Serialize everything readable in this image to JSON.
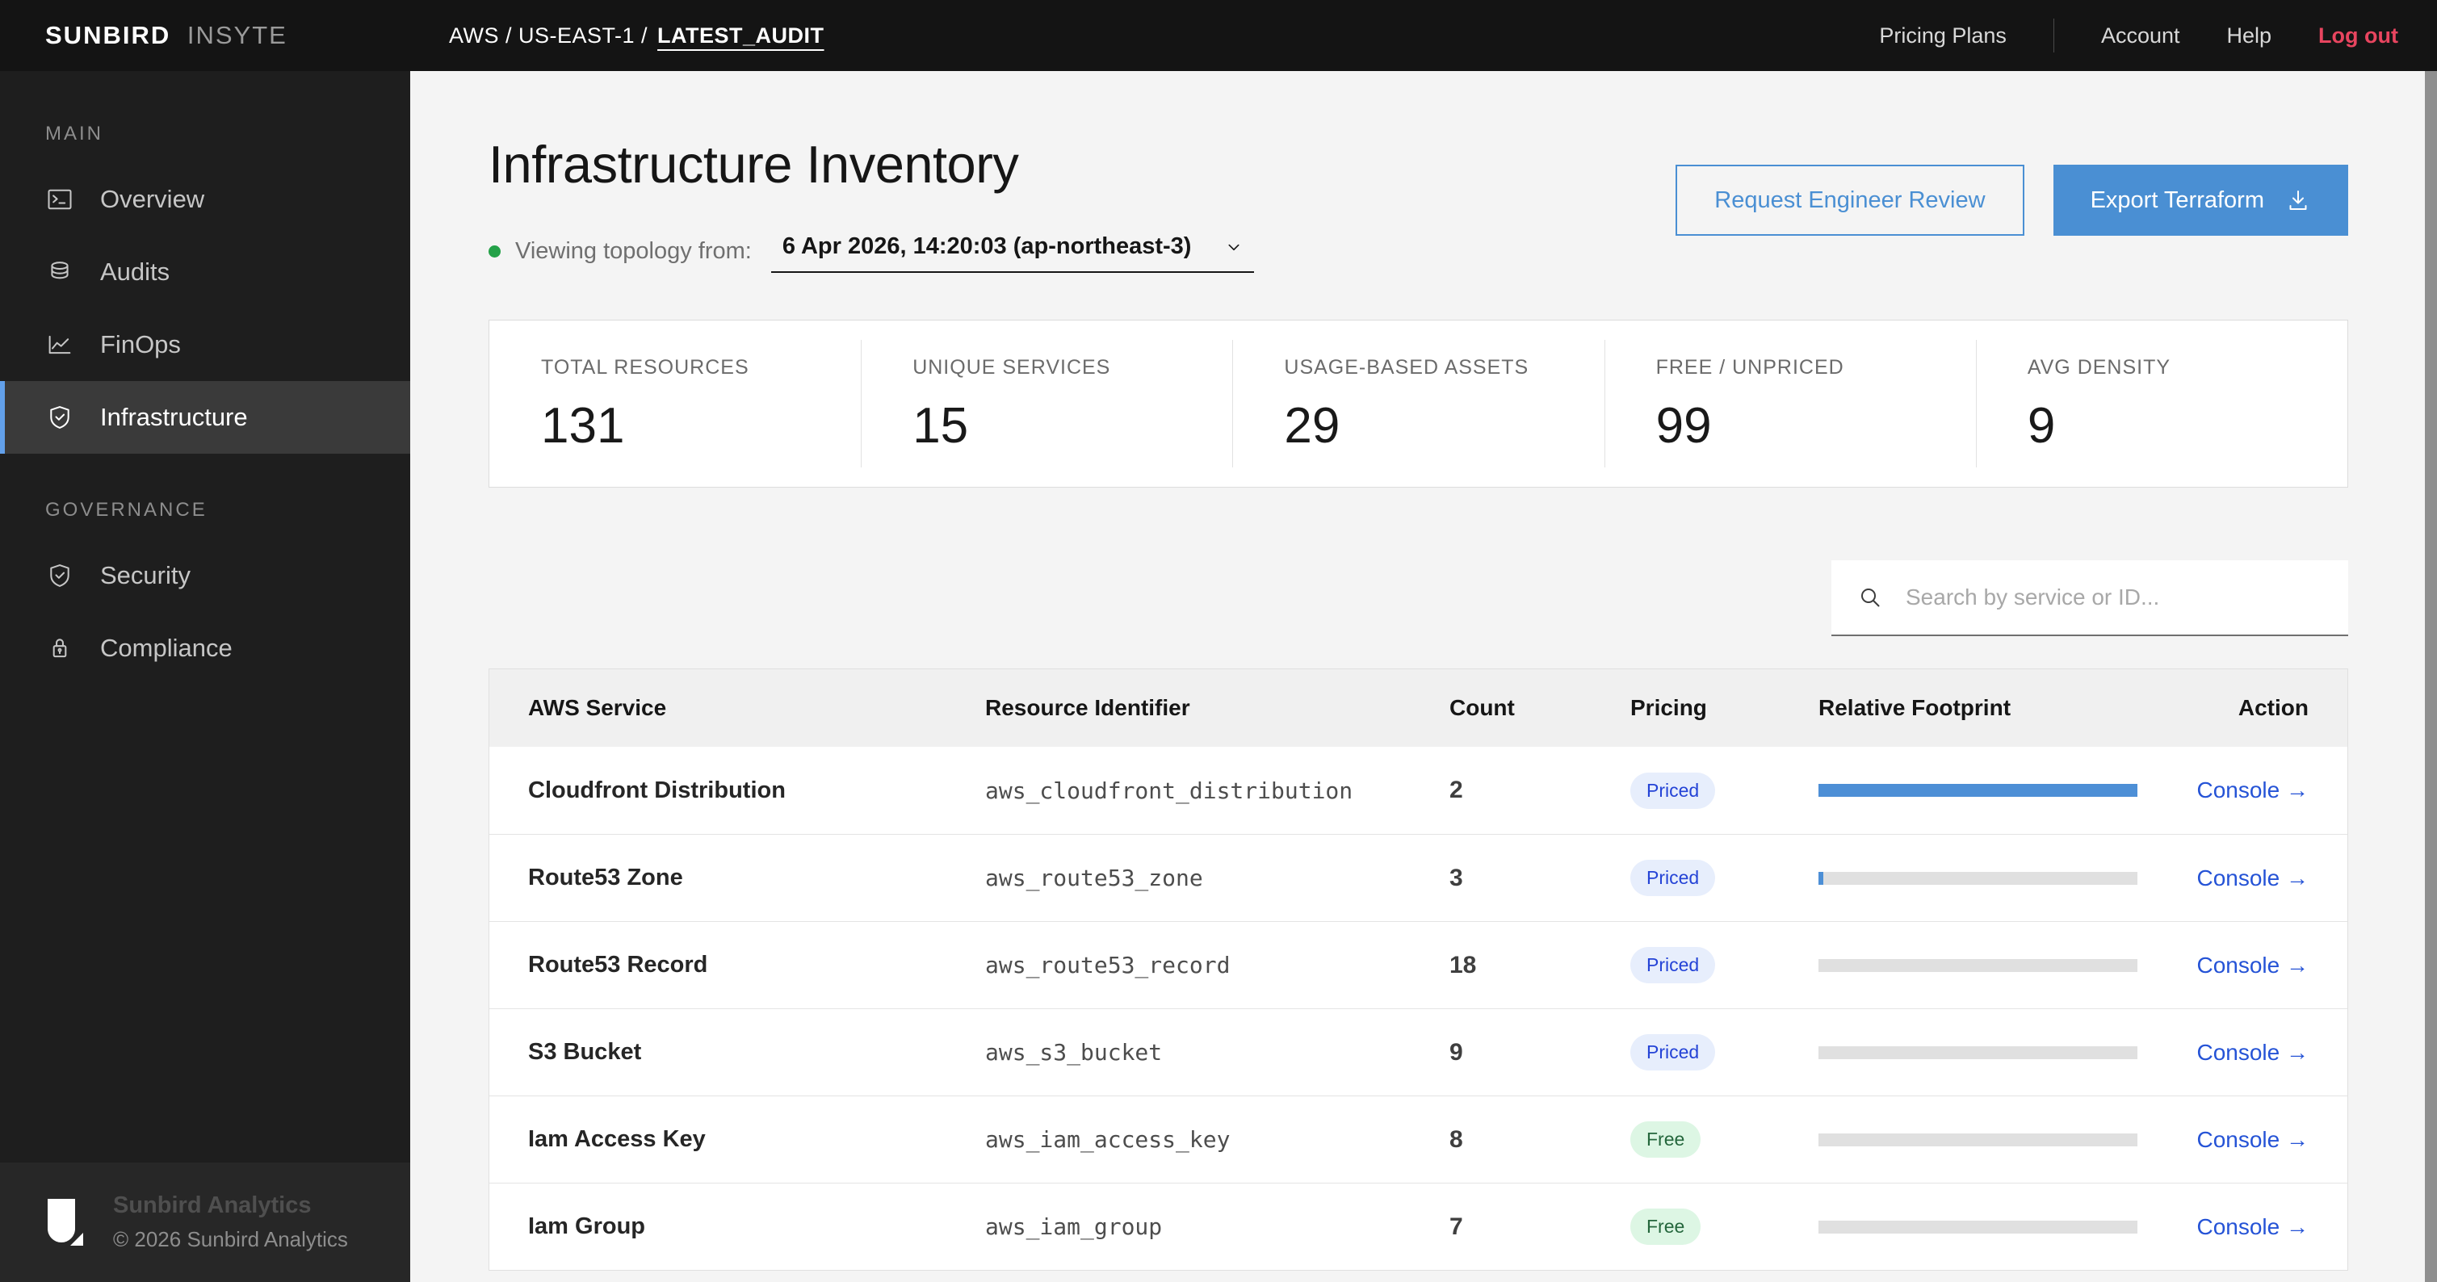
{
  "topbar": {
    "logo": {
      "primary": "SUNBIRD",
      "secondary": "INSYTE"
    },
    "breadcrumb": {
      "path": "AWS / US-EAST-1 /",
      "current": "LATEST_AUDIT"
    },
    "nav": {
      "pricing_plans": "Pricing Plans",
      "account": "Account",
      "help": "Help",
      "logout": "Log out"
    }
  },
  "sidebar": {
    "sections": [
      {
        "label": "MAIN",
        "items": [
          {
            "label": "Overview",
            "icon": "terminal-icon",
            "active": false
          },
          {
            "label": "Audits",
            "icon": "database-icon",
            "active": false
          },
          {
            "label": "FinOps",
            "icon": "line-chart-icon",
            "active": false
          },
          {
            "label": "Infrastructure",
            "icon": "shield-check-icon",
            "active": true
          }
        ]
      },
      {
        "label": "GOVERNANCE",
        "items": [
          {
            "label": "Security",
            "icon": "shield-check-icon",
            "active": false
          },
          {
            "label": "Compliance",
            "icon": "lock-icon",
            "active": false
          }
        ]
      }
    ],
    "footer": {
      "company": "Sunbird Analytics",
      "copyright": "© 2026 Sunbird Analytics"
    }
  },
  "header": {
    "title": "Infrastructure Inventory",
    "topology": {
      "label": "Viewing topology from:",
      "value": "6 Apr 2026, 14:20:03 (ap-northeast-3)"
    },
    "actions": {
      "review": "Request Engineer Review",
      "export": "Export Terraform"
    }
  },
  "stats": [
    {
      "label": "TOTAL RESOURCES",
      "value": "131"
    },
    {
      "label": "UNIQUE SERVICES",
      "value": "15"
    },
    {
      "label": "USAGE-BASED ASSETS",
      "value": "29"
    },
    {
      "label": "FREE / UNPRICED",
      "value": "99"
    },
    {
      "label": "AVG DENSITY",
      "value": "9"
    }
  ],
  "search": {
    "placeholder": "Search by service or ID..."
  },
  "table": {
    "columns": [
      "AWS Service",
      "Resource Identifier",
      "Count",
      "Pricing",
      "Relative Footprint",
      "Action"
    ],
    "rows": [
      {
        "service": "Cloudfront Distribution",
        "identifier": "aws_cloudfront_distribution",
        "count": "2",
        "pricing": "Priced",
        "footprint_pct": 100,
        "action": "Console →"
      },
      {
        "service": "Route53 Zone",
        "identifier": "aws_route53_zone",
        "count": "3",
        "pricing": "Priced",
        "footprint_pct": 1.5,
        "action": "Console →"
      },
      {
        "service": "Route53 Record",
        "identifier": "aws_route53_record",
        "count": "18",
        "pricing": "Priced",
        "footprint_pct": 0,
        "action": "Console →"
      },
      {
        "service": "S3 Bucket",
        "identifier": "aws_s3_bucket",
        "count": "9",
        "pricing": "Priced",
        "footprint_pct": 0,
        "action": "Console →"
      },
      {
        "service": "Iam Access Key",
        "identifier": "aws_iam_access_key",
        "count": "8",
        "pricing": "Free",
        "footprint_pct": 0,
        "action": "Console →"
      },
      {
        "service": "Iam Group",
        "identifier": "aws_iam_group",
        "count": "7",
        "pricing": "Free",
        "footprint_pct": 0,
        "action": "Console →"
      }
    ]
  },
  "colors": {
    "accent_blue": "#4a8fd3",
    "link_blue": "#2553d6",
    "logout_red": "#e8455f",
    "status_green": "#24a148",
    "badge_priced_bg": "#e7eefc",
    "badge_priced_text": "#2443d6",
    "badge_free_bg": "#ddf6e4",
    "badge_free_text": "#24663c",
    "sidebar_active_border": "#62a0ea",
    "bar_fill": "#4d8fd6",
    "bar_track": "#e0e0e0"
  }
}
